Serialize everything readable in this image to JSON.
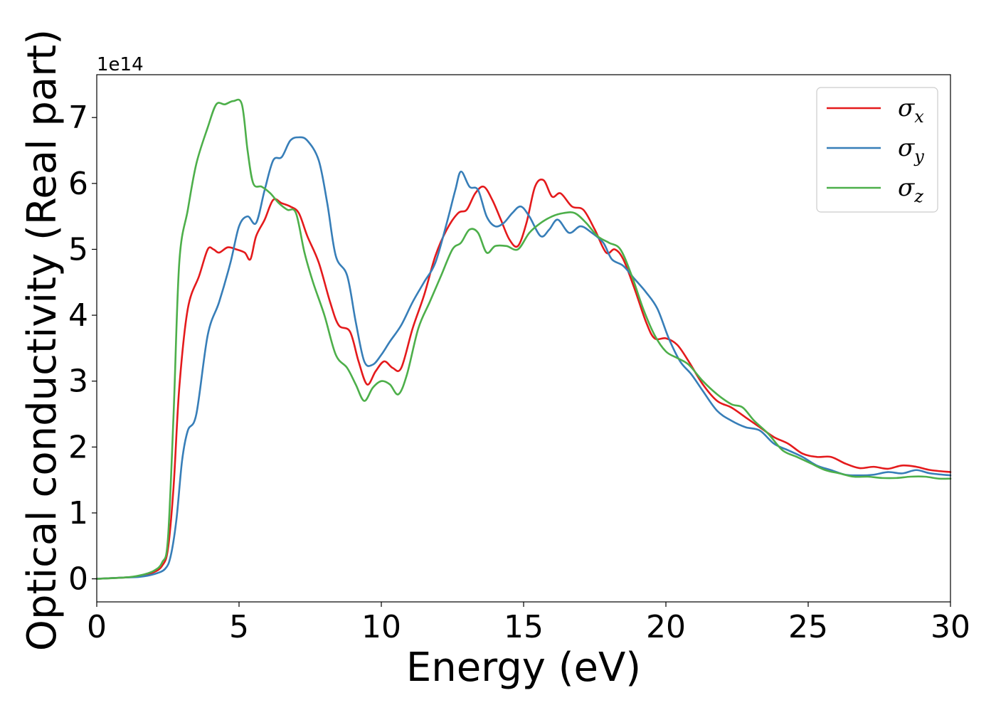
{
  "chart_data": {
    "type": "line",
    "xlabel": "Energy (eV)",
    "ylabel": "Optical conductivity (Real part)",
    "y_offset_label": "1e14",
    "xlim": [
      0,
      30
    ],
    "ylim": [
      -0.35,
      7.65
    ],
    "xticks": [
      0,
      5,
      10,
      15,
      20,
      25,
      30
    ],
    "yticks": [
      0,
      1,
      2,
      3,
      4,
      5,
      6,
      7
    ],
    "grid": false,
    "legend_position": "top-right",
    "series": [
      {
        "name": "σx",
        "symbol": "σ",
        "subscript": "x",
        "color": "#e41a1c",
        "points": [
          [
            0,
            0
          ],
          [
            1,
            0.02
          ],
          [
            1.5,
            0.04
          ],
          [
            2,
            0.1
          ],
          [
            2.3,
            0.2
          ],
          [
            2.5,
            0.45
          ],
          [
            2.7,
            1.4
          ],
          [
            2.9,
            2.9
          ],
          [
            3.2,
            4.1
          ],
          [
            3.6,
            4.6
          ],
          [
            3.9,
            5.0
          ],
          [
            4.1,
            5.0
          ],
          [
            4.3,
            4.95
          ],
          [
            4.6,
            5.03
          ],
          [
            4.9,
            5.0
          ],
          [
            5.2,
            4.95
          ],
          [
            5.4,
            4.85
          ],
          [
            5.6,
            5.2
          ],
          [
            5.9,
            5.45
          ],
          [
            6.2,
            5.75
          ],
          [
            6.5,
            5.7
          ],
          [
            6.8,
            5.65
          ],
          [
            7.1,
            5.55
          ],
          [
            7.4,
            5.2
          ],
          [
            7.8,
            4.8
          ],
          [
            8.2,
            4.2
          ],
          [
            8.5,
            3.85
          ],
          [
            8.9,
            3.75
          ],
          [
            9.2,
            3.3
          ],
          [
            9.5,
            2.95
          ],
          [
            9.8,
            3.15
          ],
          [
            10.1,
            3.3
          ],
          [
            10.4,
            3.2
          ],
          [
            10.7,
            3.2
          ],
          [
            11.1,
            3.8
          ],
          [
            11.5,
            4.3
          ],
          [
            11.9,
            4.9
          ],
          [
            12.3,
            5.3
          ],
          [
            12.7,
            5.55
          ],
          [
            13.0,
            5.6
          ],
          [
            13.3,
            5.85
          ],
          [
            13.6,
            5.95
          ],
          [
            13.9,
            5.75
          ],
          [
            14.2,
            5.45
          ],
          [
            14.5,
            5.15
          ],
          [
            14.8,
            5.05
          ],
          [
            15.1,
            5.4
          ],
          [
            15.4,
            5.95
          ],
          [
            15.7,
            6.05
          ],
          [
            16.0,
            5.8
          ],
          [
            16.3,
            5.85
          ],
          [
            16.7,
            5.65
          ],
          [
            17.1,
            5.6
          ],
          [
            17.5,
            5.3
          ],
          [
            17.9,
            4.95
          ],
          [
            18.2,
            5.0
          ],
          [
            18.5,
            4.85
          ],
          [
            18.9,
            4.4
          ],
          [
            19.3,
            3.9
          ],
          [
            19.6,
            3.65
          ],
          [
            20.0,
            3.65
          ],
          [
            20.4,
            3.55
          ],
          [
            20.8,
            3.3
          ],
          [
            21.3,
            2.95
          ],
          [
            21.8,
            2.7
          ],
          [
            22.3,
            2.6
          ],
          [
            22.8,
            2.45
          ],
          [
            23.3,
            2.3
          ],
          [
            23.8,
            2.15
          ],
          [
            24.3,
            2.05
          ],
          [
            24.8,
            1.9
          ],
          [
            25.3,
            1.85
          ],
          [
            25.8,
            1.85
          ],
          [
            26.3,
            1.75
          ],
          [
            26.8,
            1.68
          ],
          [
            27.3,
            1.7
          ],
          [
            27.8,
            1.67
          ],
          [
            28.3,
            1.72
          ],
          [
            28.8,
            1.7
          ],
          [
            29.3,
            1.65
          ],
          [
            30,
            1.62
          ]
        ]
      },
      {
        "name": "σy",
        "symbol": "σ",
        "subscript": "y",
        "color": "#377eb8",
        "points": [
          [
            0,
            0
          ],
          [
            1,
            0.02
          ],
          [
            1.5,
            0.03
          ],
          [
            2,
            0.07
          ],
          [
            2.4,
            0.15
          ],
          [
            2.6,
            0.35
          ],
          [
            2.8,
            0.9
          ],
          [
            3.0,
            1.8
          ],
          [
            3.2,
            2.25
          ],
          [
            3.5,
            2.5
          ],
          [
            3.9,
            3.7
          ],
          [
            4.3,
            4.2
          ],
          [
            4.7,
            4.8
          ],
          [
            5.0,
            5.35
          ],
          [
            5.3,
            5.5
          ],
          [
            5.6,
            5.4
          ],
          [
            5.9,
            5.9
          ],
          [
            6.2,
            6.35
          ],
          [
            6.5,
            6.4
          ],
          [
            6.8,
            6.65
          ],
          [
            7.1,
            6.7
          ],
          [
            7.4,
            6.65
          ],
          [
            7.8,
            6.35
          ],
          [
            8.1,
            5.7
          ],
          [
            8.4,
            4.9
          ],
          [
            8.8,
            4.6
          ],
          [
            9.1,
            3.9
          ],
          [
            9.4,
            3.3
          ],
          [
            9.7,
            3.25
          ],
          [
            10.0,
            3.4
          ],
          [
            10.3,
            3.6
          ],
          [
            10.7,
            3.85
          ],
          [
            11.1,
            4.2
          ],
          [
            11.5,
            4.5
          ],
          [
            11.9,
            4.8
          ],
          [
            12.3,
            5.4
          ],
          [
            12.6,
            5.9
          ],
          [
            12.8,
            6.18
          ],
          [
            13.1,
            5.95
          ],
          [
            13.4,
            5.9
          ],
          [
            13.7,
            5.5
          ],
          [
            14.0,
            5.35
          ],
          [
            14.3,
            5.4
          ],
          [
            14.6,
            5.55
          ],
          [
            14.9,
            5.65
          ],
          [
            15.2,
            5.5
          ],
          [
            15.6,
            5.2
          ],
          [
            15.9,
            5.3
          ],
          [
            16.2,
            5.45
          ],
          [
            16.6,
            5.25
          ],
          [
            17.0,
            5.35
          ],
          [
            17.4,
            5.25
          ],
          [
            17.8,
            5.1
          ],
          [
            18.1,
            4.85
          ],
          [
            18.5,
            4.75
          ],
          [
            18.9,
            4.55
          ],
          [
            19.3,
            4.35
          ],
          [
            19.7,
            4.1
          ],
          [
            20.1,
            3.65
          ],
          [
            20.5,
            3.3
          ],
          [
            20.9,
            3.1
          ],
          [
            21.3,
            2.85
          ],
          [
            21.8,
            2.55
          ],
          [
            22.3,
            2.4
          ],
          [
            22.8,
            2.3
          ],
          [
            23.3,
            2.25
          ],
          [
            23.8,
            2.05
          ],
          [
            24.3,
            1.95
          ],
          [
            24.8,
            1.85
          ],
          [
            25.3,
            1.72
          ],
          [
            25.8,
            1.65
          ],
          [
            26.3,
            1.58
          ],
          [
            26.8,
            1.57
          ],
          [
            27.3,
            1.58
          ],
          [
            27.8,
            1.62
          ],
          [
            28.3,
            1.6
          ],
          [
            28.8,
            1.65
          ],
          [
            29.3,
            1.6
          ],
          [
            30,
            1.57
          ]
        ]
      },
      {
        "name": "σz",
        "symbol": "σ",
        "subscript": "z",
        "color": "#4daf4a",
        "points": [
          [
            0,
            0
          ],
          [
            1,
            0.02
          ],
          [
            1.5,
            0.05
          ],
          [
            2,
            0.12
          ],
          [
            2.3,
            0.25
          ],
          [
            2.5,
            0.6
          ],
          [
            2.7,
            2.5
          ],
          [
            2.9,
            4.8
          ],
          [
            3.2,
            5.6
          ],
          [
            3.5,
            6.3
          ],
          [
            3.9,
            6.85
          ],
          [
            4.2,
            7.2
          ],
          [
            4.5,
            7.2
          ],
          [
            4.8,
            7.25
          ],
          [
            5.1,
            7.2
          ],
          [
            5.3,
            6.5
          ],
          [
            5.5,
            6.0
          ],
          [
            5.8,
            5.95
          ],
          [
            6.1,
            5.85
          ],
          [
            6.4,
            5.7
          ],
          [
            6.7,
            5.6
          ],
          [
            7.0,
            5.55
          ],
          [
            7.3,
            4.95
          ],
          [
            7.6,
            4.5
          ],
          [
            8.0,
            4.0
          ],
          [
            8.4,
            3.4
          ],
          [
            8.8,
            3.2
          ],
          [
            9.1,
            2.95
          ],
          [
            9.4,
            2.7
          ],
          [
            9.7,
            2.9
          ],
          [
            10.0,
            3.0
          ],
          [
            10.3,
            2.95
          ],
          [
            10.6,
            2.8
          ],
          [
            10.9,
            3.1
          ],
          [
            11.3,
            3.8
          ],
          [
            11.7,
            4.2
          ],
          [
            12.1,
            4.6
          ],
          [
            12.5,
            5.0
          ],
          [
            12.8,
            5.1
          ],
          [
            13.1,
            5.3
          ],
          [
            13.4,
            5.25
          ],
          [
            13.7,
            4.95
          ],
          [
            14.0,
            5.05
          ],
          [
            14.4,
            5.05
          ],
          [
            14.8,
            5.0
          ],
          [
            15.2,
            5.25
          ],
          [
            15.6,
            5.4
          ],
          [
            16.0,
            5.5
          ],
          [
            16.4,
            5.55
          ],
          [
            16.8,
            5.55
          ],
          [
            17.2,
            5.4
          ],
          [
            17.6,
            5.2
          ],
          [
            18.0,
            5.1
          ],
          [
            18.4,
            5.0
          ],
          [
            18.8,
            4.6
          ],
          [
            19.2,
            4.1
          ],
          [
            19.6,
            3.7
          ],
          [
            20.0,
            3.45
          ],
          [
            20.4,
            3.35
          ],
          [
            20.8,
            3.25
          ],
          [
            21.3,
            3.0
          ],
          [
            21.8,
            2.8
          ],
          [
            22.3,
            2.65
          ],
          [
            22.7,
            2.6
          ],
          [
            23.1,
            2.4
          ],
          [
            23.6,
            2.2
          ],
          [
            24.1,
            1.95
          ],
          [
            24.6,
            1.85
          ],
          [
            25.1,
            1.75
          ],
          [
            25.6,
            1.65
          ],
          [
            26.1,
            1.6
          ],
          [
            26.6,
            1.55
          ],
          [
            27.1,
            1.55
          ],
          [
            27.6,
            1.53
          ],
          [
            28.1,
            1.53
          ],
          [
            28.6,
            1.55
          ],
          [
            29.1,
            1.55
          ],
          [
            29.6,
            1.52
          ],
          [
            30,
            1.52
          ]
        ]
      }
    ]
  }
}
